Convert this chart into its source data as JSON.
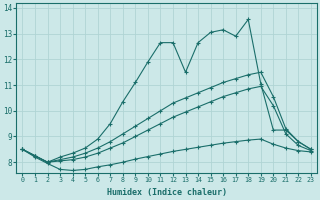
{
  "xlabel": "Humidex (Indice chaleur)",
  "bg_color": "#cce8e8",
  "line_color": "#1a6e6a",
  "grid_color": "#b0d4d4",
  "xlim_min": -0.5,
  "xlim_max": 23.5,
  "ylim_min": 7.6,
  "ylim_max": 14.2,
  "yticks": [
    8,
    9,
    10,
    11,
    12,
    13,
    14
  ],
  "xticks": [
    0,
    1,
    2,
    3,
    4,
    5,
    6,
    7,
    8,
    9,
    10,
    11,
    12,
    13,
    14,
    15,
    16,
    17,
    18,
    19,
    20,
    21,
    22,
    23
  ],
  "series_volatile": [
    8.5,
    8.25,
    8.0,
    8.2,
    8.35,
    8.55,
    8.9,
    9.5,
    10.35,
    11.1,
    11.9,
    12.65,
    12.65,
    11.5,
    12.65,
    13.05,
    13.15,
    12.9,
    13.55,
    11.05,
    9.25,
    9.25,
    8.8,
    8.5
  ],
  "series_mid1": [
    8.5,
    8.25,
    8.0,
    8.1,
    8.2,
    8.35,
    8.55,
    8.8,
    9.1,
    9.4,
    9.7,
    10.0,
    10.3,
    10.5,
    10.7,
    10.9,
    11.1,
    11.25,
    11.4,
    11.5,
    10.55,
    9.3,
    8.8,
    8.5
  ],
  "series_mid2": [
    8.5,
    8.25,
    8.0,
    8.05,
    8.1,
    8.2,
    8.35,
    8.55,
    8.75,
    9.0,
    9.25,
    9.5,
    9.75,
    9.95,
    10.15,
    10.35,
    10.55,
    10.7,
    10.85,
    10.95,
    10.2,
    9.1,
    8.65,
    8.45
  ],
  "series_flat": [
    8.5,
    8.2,
    7.95,
    7.72,
    7.68,
    7.72,
    7.82,
    7.9,
    8.0,
    8.12,
    8.22,
    8.32,
    8.42,
    8.5,
    8.58,
    8.66,
    8.74,
    8.8,
    8.86,
    8.9,
    8.7,
    8.55,
    8.45,
    8.4
  ]
}
